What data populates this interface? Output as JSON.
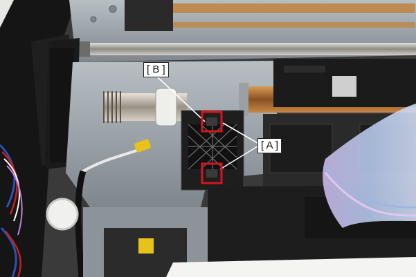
{
  "callouts": {
    "b": "[ B ]",
    "a": "[ A ]"
  },
  "colors": {
    "highlight_box": "#d8141c",
    "leader_line": "#ffffff",
    "frame_metal": "#9ea7ad",
    "copper_shaft": "#b9793c",
    "foam": "#1c1c1c",
    "ribbon_cable": "#b9c4e6"
  },
  "icons": [
    "printer-mechanism-photo"
  ]
}
